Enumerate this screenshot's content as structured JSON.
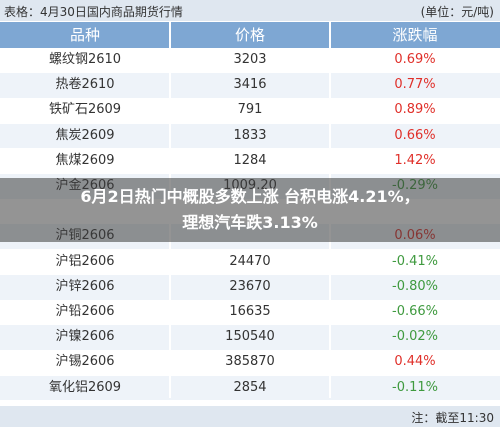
{
  "header": {
    "title": "表格：4月30日国内商品期货行情",
    "unit": "(单位：元/吨)"
  },
  "table": {
    "columns": [
      "品种",
      "价格",
      "涨跌幅"
    ],
    "rows": [
      {
        "name": "螺纹钢2610",
        "price": "3203",
        "change": "0.69%"
      },
      {
        "name": "热卷2610",
        "price": "3416",
        "change": "0.77%"
      },
      {
        "name": "铁矿石2609",
        "price": "791",
        "change": "0.89%"
      },
      {
        "name": "焦炭2609",
        "price": "1833",
        "change": "0.66%"
      },
      {
        "name": "焦煤2609",
        "price": "1284",
        "change": "1.42%"
      },
      {
        "name": "沪金2606",
        "price": "1009.20",
        "change": "-0.29%"
      },
      {},
      {
        "name": "沪铜2606",
        "change": "0.06%"
      },
      {
        "name": "沪铝2606",
        "price": "24470",
        "change": "-0.41%"
      },
      {
        "name": "沪锌2606",
        "price": "23670",
        "change": "-0.80%"
      },
      {
        "name": "沪铅2606",
        "price": "16635",
        "change": "-0.66%"
      },
      {
        "name": "沪镍2606",
        "price": "150540",
        "change": "-0.02%"
      },
      {
        "name": "沪锡2606",
        "price": "385870",
        "change": "0.44%"
      },
      {
        "name": "氧化铝2609",
        "price": "2854",
        "change": "-0.11%"
      }
    ]
  },
  "overlay": {
    "headline": "6月2日热门中概股多数上涨 台积电涨4.21%，理想汽车跌3.13%"
  },
  "footer": {
    "note": "注：截至11:30"
  }
}
